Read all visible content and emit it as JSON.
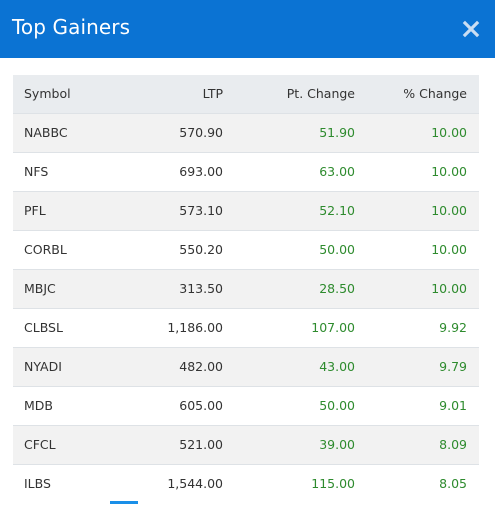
{
  "modal": {
    "title": "Top Gainers",
    "close_icon": "close-icon"
  },
  "table": {
    "headers": {
      "symbol": "Symbol",
      "ltp": "LTP",
      "pt_change": "Pt. Change",
      "pct_change": "% Change"
    },
    "rows": [
      {
        "symbol": "NABBC",
        "ltp": "570.90",
        "pt_change": "51.90",
        "pct_change": "10.00"
      },
      {
        "symbol": "NFS",
        "ltp": "693.00",
        "pt_change": "63.00",
        "pct_change": "10.00"
      },
      {
        "symbol": "PFL",
        "ltp": "573.10",
        "pt_change": "52.10",
        "pct_change": "10.00"
      },
      {
        "symbol": "CORBL",
        "ltp": "550.20",
        "pt_change": "50.00",
        "pct_change": "10.00"
      },
      {
        "symbol": "MBJC",
        "ltp": "313.50",
        "pt_change": "28.50",
        "pct_change": "10.00"
      },
      {
        "symbol": "CLBSL",
        "ltp": "1,186.00",
        "pt_change": "107.00",
        "pct_change": "9.92"
      },
      {
        "symbol": "NYADI",
        "ltp": "482.00",
        "pt_change": "43.00",
        "pct_change": "9.79"
      },
      {
        "symbol": "MDB",
        "ltp": "605.00",
        "pt_change": "50.00",
        "pct_change": "9.01"
      },
      {
        "symbol": "CFCL",
        "ltp": "521.00",
        "pt_change": "39.00",
        "pct_change": "8.09"
      },
      {
        "symbol": "ILBS",
        "ltp": "1,544.00",
        "pt_change": "115.00",
        "pct_change": "8.05"
      }
    ]
  },
  "colors": {
    "header_bg": "#0b73d3",
    "positive": "#2e8b2e"
  }
}
